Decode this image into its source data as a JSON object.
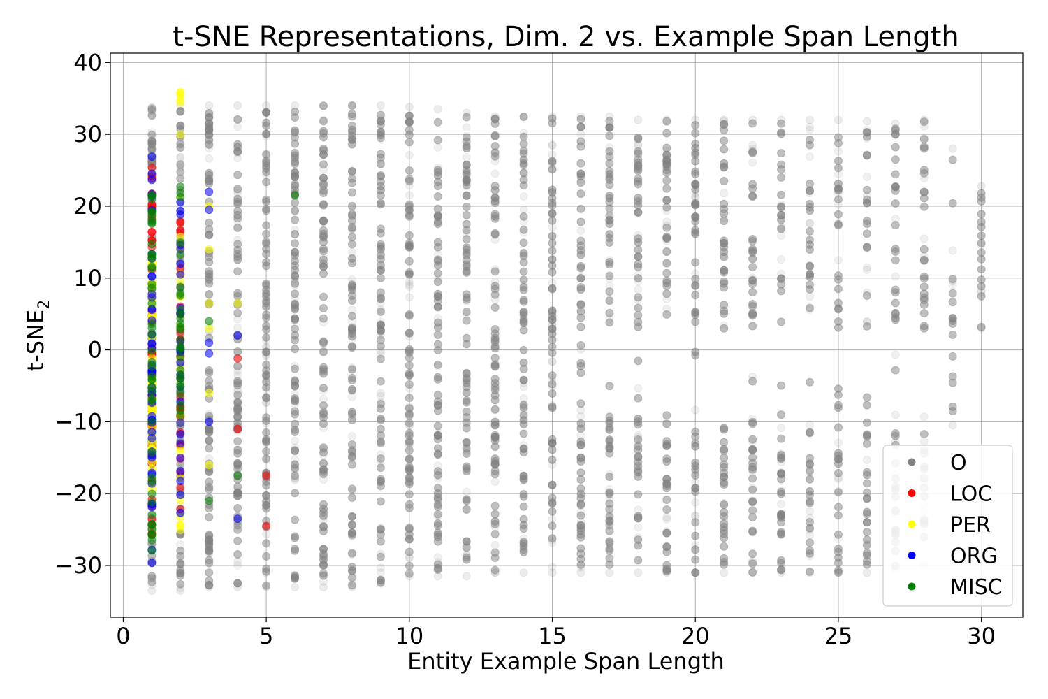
{
  "chart_data": {
    "type": "scatter",
    "title": "t-SNE Representations, Dim. 2 vs. Example Span Length",
    "xlabel": "Entity Example Span Length",
    "ylabel": "t-SNE",
    "ylabel_subscript": "2",
    "xlim": [
      -0.45,
      31.45
    ],
    "ylim": [
      -37.2,
      41.3
    ],
    "xticks": [
      0,
      5,
      10,
      15,
      20,
      25,
      30
    ],
    "yticks": [
      40,
      30,
      20,
      10,
      0,
      -10,
      -20,
      -30
    ],
    "xtick_labels": [
      "0",
      "5",
      "10",
      "15",
      "20",
      "25",
      "30"
    ],
    "ytick_labels": [
      "40",
      "30",
      "20",
      "10",
      "0",
      "−10",
      "−20",
      "−30"
    ],
    "grid": true,
    "legend_position": "lower right",
    "series": [
      {
        "name": "O",
        "color": "#808080",
        "ranges": [
          {
            "x": 1,
            "min": -33.5,
            "max": 33.8
          },
          {
            "x": 2,
            "min": -33.5,
            "max": 34.0
          },
          {
            "x": 3,
            "min": -33.0,
            "max": 34.0
          },
          {
            "x": 4,
            "min": -33.0,
            "max": 34.0
          },
          {
            "x": 5,
            "min": -33.0,
            "max": 34.0
          },
          {
            "x": 6,
            "min": -33.0,
            "max": 34.0
          },
          {
            "x": 7,
            "min": -33.0,
            "max": 34.0
          },
          {
            "x": 8,
            "min": -33.0,
            "max": 34.0
          },
          {
            "x": 9,
            "min": -32.5,
            "max": 34.0
          },
          {
            "x": 10,
            "min": -31.5,
            "max": 33.8
          },
          {
            "x": 11,
            "min": -31.5,
            "max": 33.5
          },
          {
            "x": 12,
            "min": -31.5,
            "max": 33.0
          },
          {
            "x": 13,
            "min": -31.0,
            "max": 32.5
          },
          {
            "x": 14,
            "min": -31.0,
            "max": 32.5
          },
          {
            "x": 15,
            "min": -31.0,
            "max": 32.5
          },
          {
            "x": 16,
            "min": -31.0,
            "max": 32.5
          },
          {
            "x": 17,
            "min": -31.0,
            "max": 32.5
          },
          {
            "x": 18,
            "min": -31.0,
            "max": 32.0
          },
          {
            "x": 19,
            "min": -31.0,
            "max": 32.0
          },
          {
            "x": 20,
            "min": -31.0,
            "max": 32.0
          },
          {
            "x": 21,
            "min": -31.0,
            "max": 32.0
          },
          {
            "x": 22,
            "min": -31.0,
            "max": 32.0
          },
          {
            "x": 23,
            "min": -31.0,
            "max": 32.0
          },
          {
            "x": 24,
            "min": -31.0,
            "max": 32.0
          },
          {
            "x": 25,
            "min": -31.0,
            "max": 32.0
          },
          {
            "x": 26,
            "min": -31.0,
            "max": 31.8
          },
          {
            "x": 27,
            "min": -30.5,
            "max": 31.5
          },
          {
            "x": 28,
            "min": -30.0,
            "max": 32.0
          },
          {
            "x": 29,
            "min": -10.5,
            "max": 28.0
          },
          {
            "x": 30,
            "min": 3.0,
            "max": 22.8
          }
        ]
      },
      {
        "name": "LOC",
        "color": "#ff0000",
        "ranges": [
          {
            "x": 1,
            "min": -26.0,
            "max": 26.0
          },
          {
            "x": 2,
            "min": -25.0,
            "max": 18.0
          }
        ],
        "points": [
          {
            "x": 4,
            "y": -1.2
          },
          {
            "x": 4,
            "y": -11.0
          },
          {
            "x": 5,
            "y": -17.5
          },
          {
            "x": 5,
            "y": -24.5
          }
        ]
      },
      {
        "name": "PER",
        "color": "#ffff00",
        "ranges": [
          {
            "x": 1,
            "min": -20.0,
            "max": 14.0
          },
          {
            "x": 2,
            "min": -28.0,
            "max": 37.5
          }
        ],
        "points": [
          {
            "x": 3,
            "y": 20.0
          },
          {
            "x": 3,
            "y": 14.0
          },
          {
            "x": 3,
            "y": 6.5
          },
          {
            "x": 3,
            "y": 3.0
          },
          {
            "x": 3,
            "y": -6.0
          },
          {
            "x": 3,
            "y": -16.0
          },
          {
            "x": 4,
            "y": 6.5
          }
        ]
      },
      {
        "name": "ORG",
        "color": "#0000ff",
        "ranges": [
          {
            "x": 1,
            "min": -30.0,
            "max": 28.5
          },
          {
            "x": 2,
            "min": -24.0,
            "max": 21.0
          }
        ],
        "points": [
          {
            "x": 3,
            "y": 22.0
          },
          {
            "x": 3,
            "y": 19.5
          },
          {
            "x": 3,
            "y": 1.0
          },
          {
            "x": 3,
            "y": -0.5
          },
          {
            "x": 3,
            "y": -10.0
          },
          {
            "x": 4,
            "y": 2.0
          },
          {
            "x": 4,
            "y": -23.5
          }
        ]
      },
      {
        "name": "MISC",
        "color": "#008000",
        "ranges": [
          {
            "x": 1,
            "min": -28.5,
            "max": 24.0
          },
          {
            "x": 2,
            "min": -10.0,
            "max": 24.0
          }
        ],
        "points": [
          {
            "x": 3,
            "y": 4.0
          },
          {
            "x": 3,
            "y": -21.0
          },
          {
            "x": 4,
            "y": -17.5
          },
          {
            "x": 6,
            "y": 21.5
          }
        ]
      }
    ]
  }
}
